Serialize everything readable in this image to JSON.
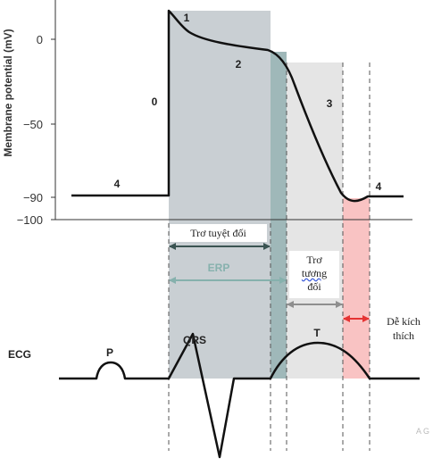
{
  "y_axis": {
    "label": "Membrane potential (mV)",
    "ticks": [
      "0",
      "−50",
      "−90",
      "−100"
    ]
  },
  "phases": [
    "0",
    "1",
    "2",
    "3",
    "4",
    "4"
  ],
  "periods": {
    "absolute": "Trơ tuyệt đối",
    "erp": "ERP",
    "relative_lines": [
      "Trơ",
      "tương",
      "đối"
    ],
    "supernormal_lines": [
      "Dễ kích",
      "thích"
    ]
  },
  "ecg": {
    "label": "ECG",
    "p": "P",
    "qrs": "QRS",
    "t": "T"
  },
  "watermark": "A G",
  "colors": {
    "absolute_shade": "#c9cfd3",
    "erp_shade": "#9fb8b9",
    "relative_shade": "#e5e5e5",
    "supernormal_shade": "#f9c3c3",
    "erp_arrow": "#86b1ad",
    "relative_arrow": "#8e8e8e",
    "supernormal_arrow": "#e53333"
  }
}
